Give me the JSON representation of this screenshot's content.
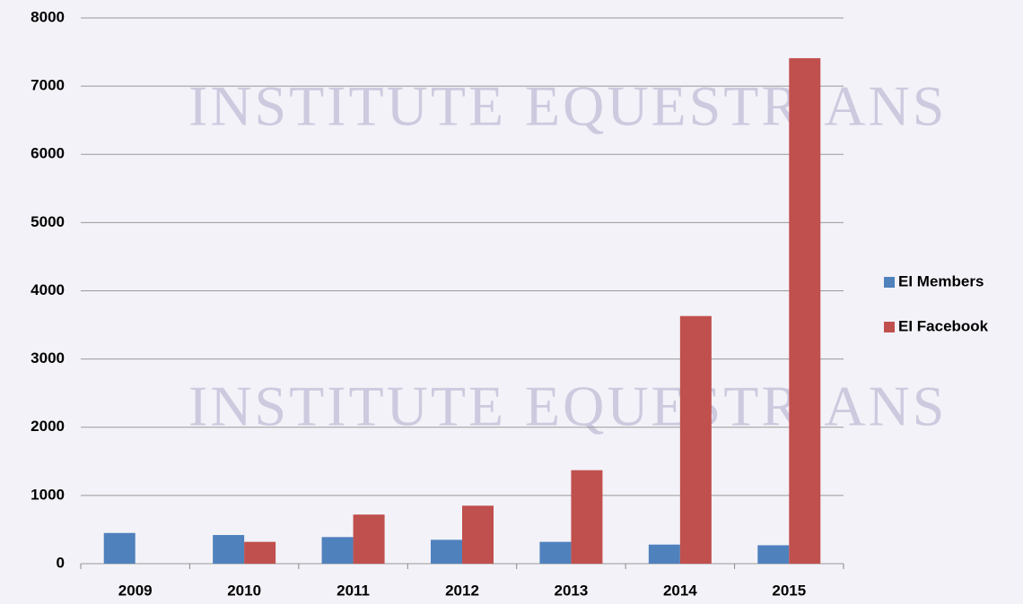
{
  "chart_data": {
    "type": "bar",
    "annotations": [
      "INSTITUTE",
      "EQUESTRIANS"
    ],
    "categories": [
      "2009",
      "2010",
      "2011",
      "2012",
      "2013",
      "2014",
      "2015"
    ],
    "series": [
      {
        "name": "EI Members",
        "color": "#4f81bd",
        "values": [
          450,
          420,
          390,
          350,
          320,
          280,
          270
        ]
      },
      {
        "name": "EI Facebook",
        "color": "#c0504d",
        "values": [
          null,
          320,
          720,
          850,
          1370,
          3630,
          7410
        ]
      }
    ],
    "ylim": [
      0,
      8000
    ],
    "yticks": [
      0,
      1000,
      2000,
      3000,
      4000,
      5000,
      6000,
      7000,
      8000
    ],
    "grid": true,
    "legend": "right"
  }
}
